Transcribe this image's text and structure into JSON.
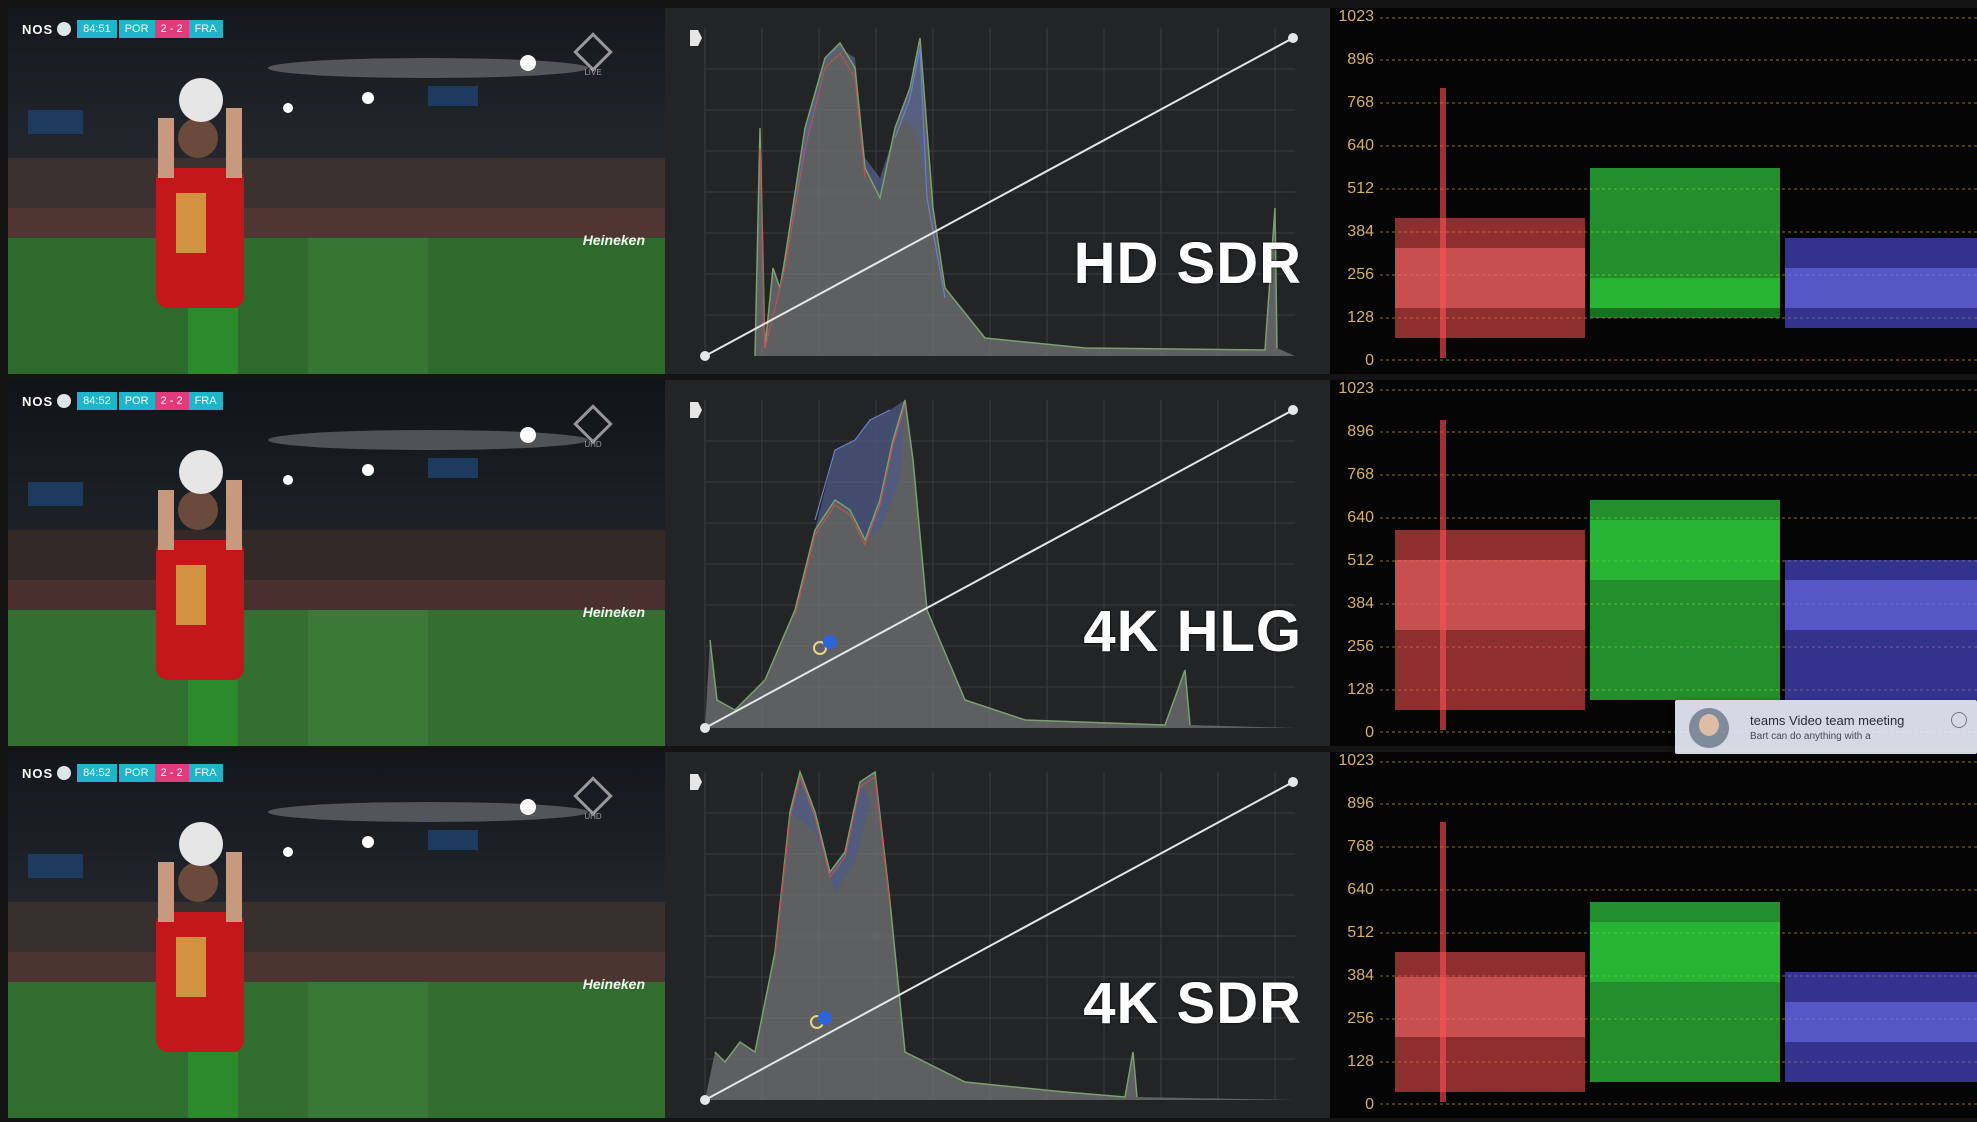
{
  "rows": [
    {
      "scorebug": {
        "channel": "NOS",
        "clock": "84:51",
        "team_home": "POR",
        "score": "2 - 2",
        "team_away": "FRA"
      },
      "channel_mark": "LIVE",
      "board_text": "Heineken",
      "label": "HD SDR",
      "scale": [
        "1023",
        "896",
        "768",
        "640",
        "512",
        "384",
        "256",
        "128",
        "0"
      ]
    },
    {
      "scorebug": {
        "channel": "NOS",
        "clock": "84:52",
        "team_home": "POR",
        "score": "2 - 2",
        "team_away": "FRA"
      },
      "channel_mark": "UHD",
      "board_text": "Heineken",
      "label": "4K HLG",
      "scale": [
        "1023",
        "896",
        "768",
        "640",
        "512",
        "384",
        "256",
        "128",
        "0"
      ]
    },
    {
      "scorebug": {
        "channel": "NOS",
        "clock": "84:52",
        "team_home": "POR",
        "score": "2 - 2",
        "team_away": "FRA"
      },
      "channel_mark": "UHD",
      "board_text": "Heineken",
      "label": "4K SDR",
      "scale": [
        "1023",
        "896",
        "768",
        "640",
        "512",
        "384",
        "256",
        "128",
        "0"
      ]
    }
  ],
  "notification": {
    "title": "teams Video team meeting",
    "body": "Bart can do anything with a"
  },
  "colors": {
    "pitch": "#2d6a2c",
    "jersey": "#c4171b",
    "scorebug": "#1fb5c9",
    "score": "#e23a7a",
    "curve": "#e6e6e6",
    "parade_red": "#ff5252",
    "parade_green": "#3cff4c",
    "parade_blue": "#5a5aff",
    "scale": "#d6b06a"
  }
}
